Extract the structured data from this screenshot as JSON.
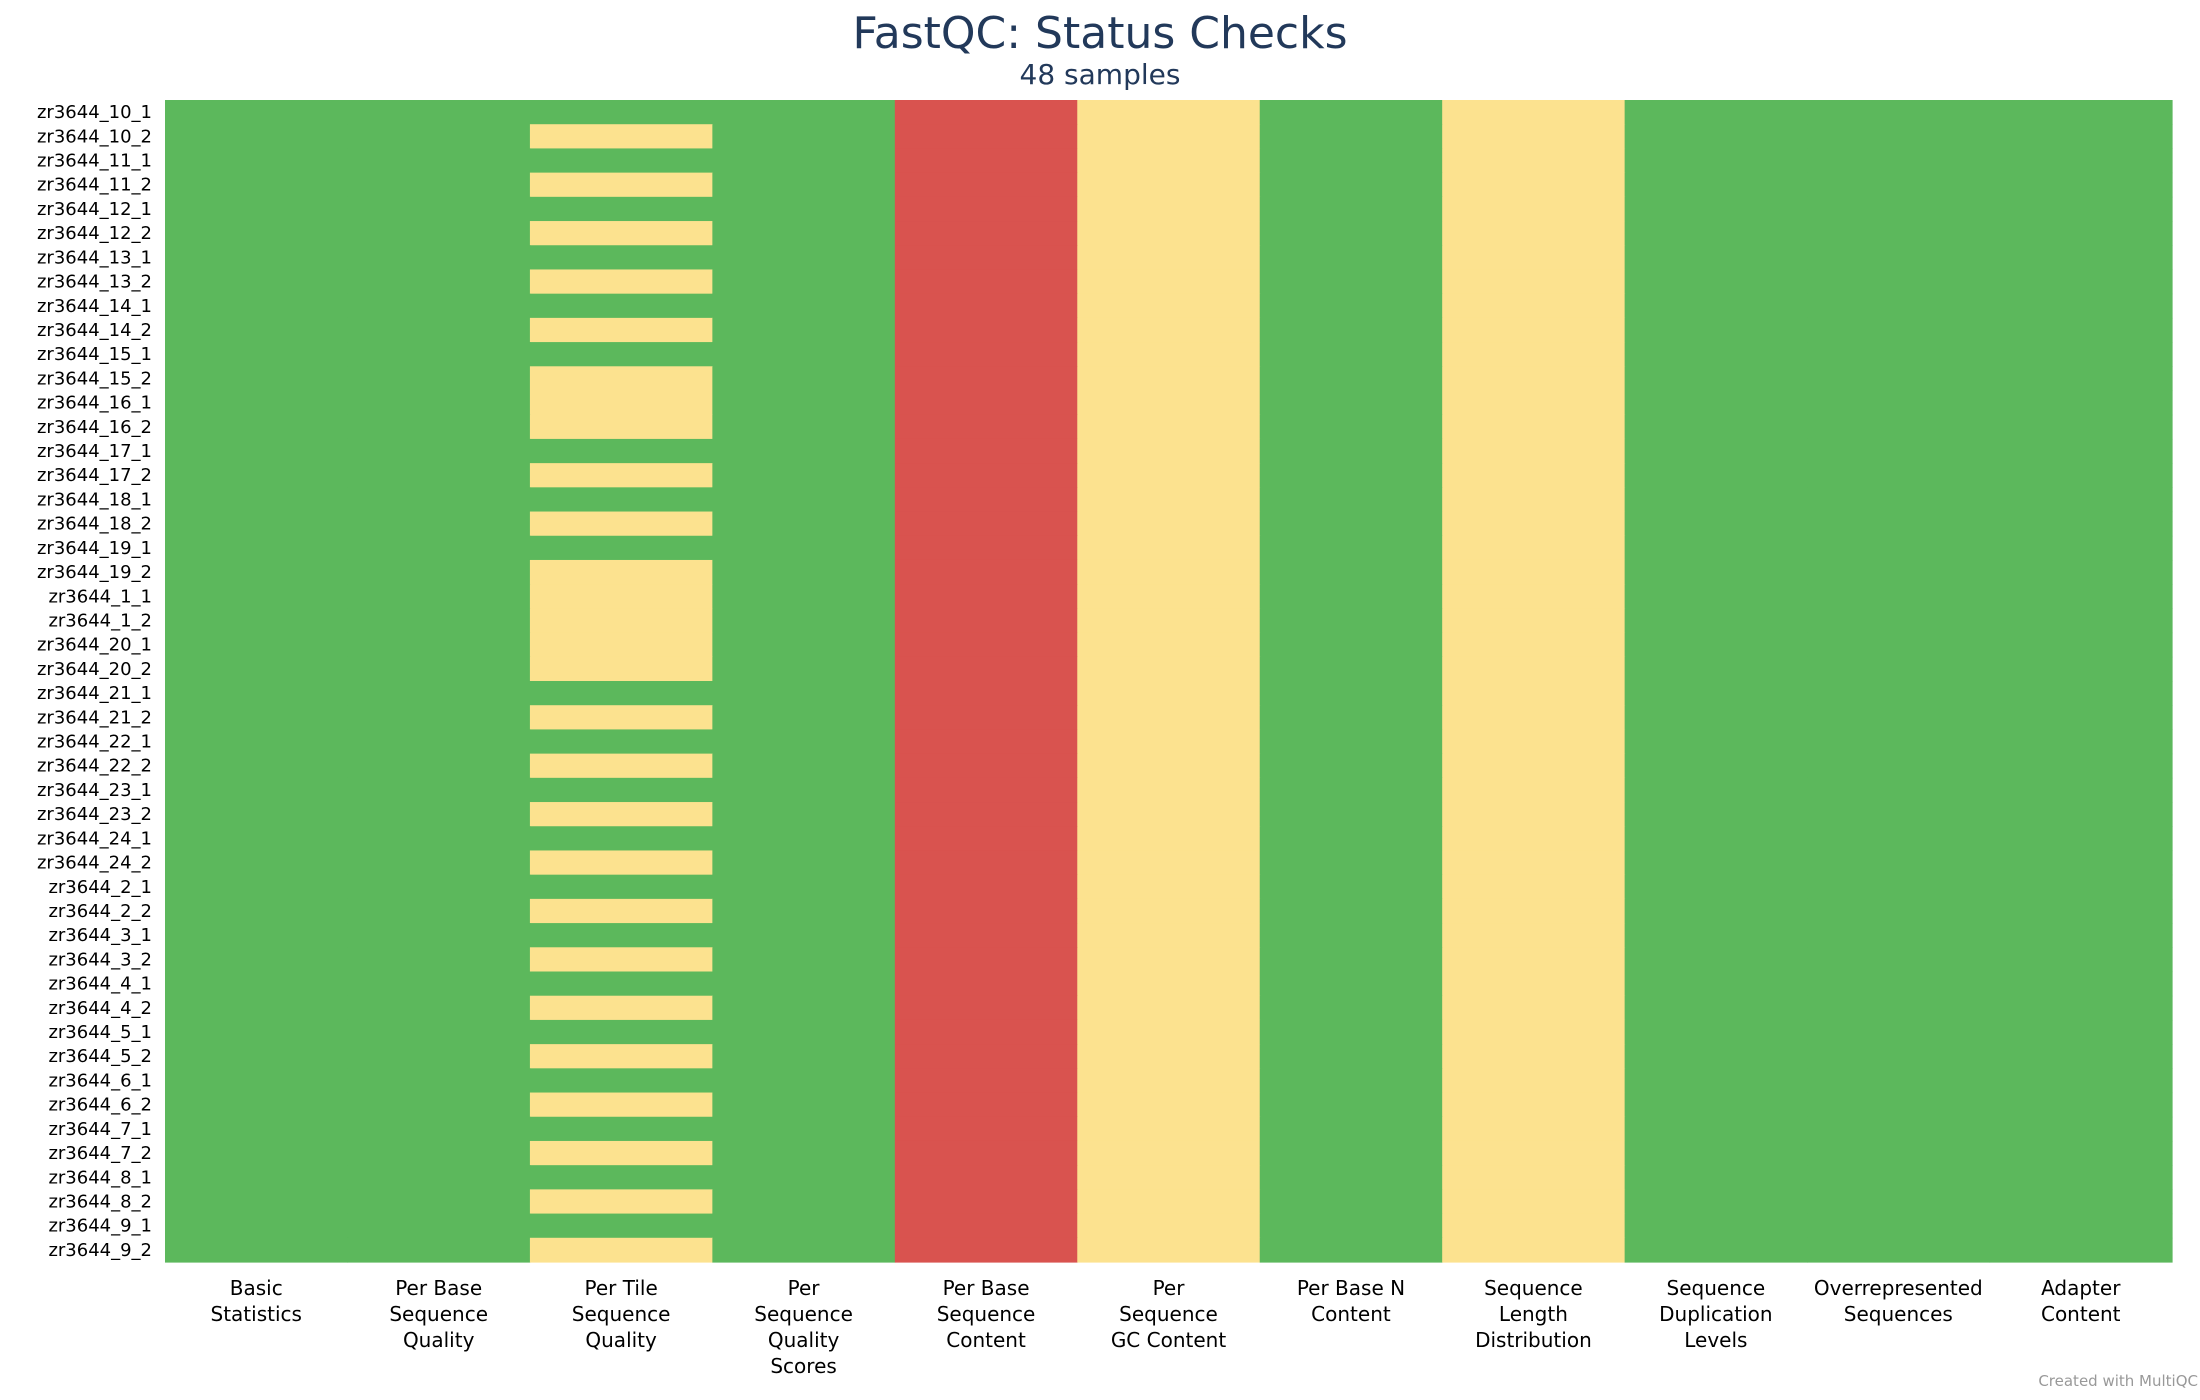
{
  "chart_data": {
    "type": "heatmap",
    "title": "FastQC: Status Checks",
    "subtitle": "48 samples",
    "columns": [
      [
        "Basic",
        "Statistics"
      ],
      [
        "Per Base",
        "Sequence",
        "Quality"
      ],
      [
        "Per Tile",
        "Sequence",
        "Quality"
      ],
      [
        "Per",
        "Sequence",
        "Quality",
        "Scores"
      ],
      [
        "Per Base",
        "Sequence",
        "Content"
      ],
      [
        "Per",
        "Sequence",
        "GC Content"
      ],
      [
        "Per Base N",
        "Content"
      ],
      [
        "Sequence",
        "Length",
        "Distribution"
      ],
      [
        "Sequence",
        "Duplication",
        "Levels"
      ],
      [
        "Overrepresented",
        "Sequences"
      ],
      [
        "Adapter",
        "Content"
      ]
    ],
    "samples": [
      "zr3644_10_1",
      "zr3644_10_2",
      "zr3644_11_1",
      "zr3644_11_2",
      "zr3644_12_1",
      "zr3644_12_2",
      "zr3644_13_1",
      "zr3644_13_2",
      "zr3644_14_1",
      "zr3644_14_2",
      "zr3644_15_1",
      "zr3644_15_2",
      "zr3644_16_1",
      "zr3644_16_2",
      "zr3644_17_1",
      "zr3644_17_2",
      "zr3644_18_1",
      "zr3644_18_2",
      "zr3644_19_1",
      "zr3644_19_2",
      "zr3644_1_1",
      "zr3644_1_2",
      "zr3644_20_1",
      "zr3644_20_2",
      "zr3644_21_1",
      "zr3644_21_2",
      "zr3644_22_1",
      "zr3644_22_2",
      "zr3644_23_1",
      "zr3644_23_2",
      "zr3644_24_1",
      "zr3644_24_2",
      "zr3644_2_1",
      "zr3644_2_2",
      "zr3644_3_1",
      "zr3644_3_2",
      "zr3644_4_1",
      "zr3644_4_2",
      "zr3644_5_1",
      "zr3644_5_2",
      "zr3644_6_1",
      "zr3644_6_2",
      "zr3644_7_1",
      "zr3644_7_2",
      "zr3644_8_1",
      "zr3644_8_2",
      "zr3644_9_1",
      "zr3644_9_2"
    ],
    "status_colors": {
      "pass": "#5cb85c",
      "warn": "#fce28f",
      "fail": "#d9534f"
    },
    "column_status_default": [
      "pass",
      "pass",
      "pass",
      "pass",
      "fail",
      "warn",
      "pass",
      "warn",
      "pass",
      "pass",
      "pass"
    ],
    "per_tile_warn_samples": [
      "zr3644_10_2",
      "zr3644_11_2",
      "zr3644_12_2",
      "zr3644_13_2",
      "zr3644_14_2",
      "zr3644_15_2",
      "zr3644_16_1",
      "zr3644_16_2",
      "zr3644_17_2",
      "zr3644_18_2",
      "zr3644_19_2",
      "zr3644_1_1",
      "zr3644_1_2",
      "zr3644_20_1",
      "zr3644_20_2",
      "zr3644_21_2",
      "zr3644_22_2",
      "zr3644_23_2",
      "zr3644_24_2",
      "zr3644_2_2",
      "zr3644_3_2",
      "zr3644_4_2",
      "zr3644_5_2",
      "zr3644_6_2",
      "zr3644_7_2",
      "zr3644_8_2",
      "zr3644_9_2"
    ],
    "grid": false,
    "legend": "none"
  },
  "credit": "Created with MultiQC"
}
